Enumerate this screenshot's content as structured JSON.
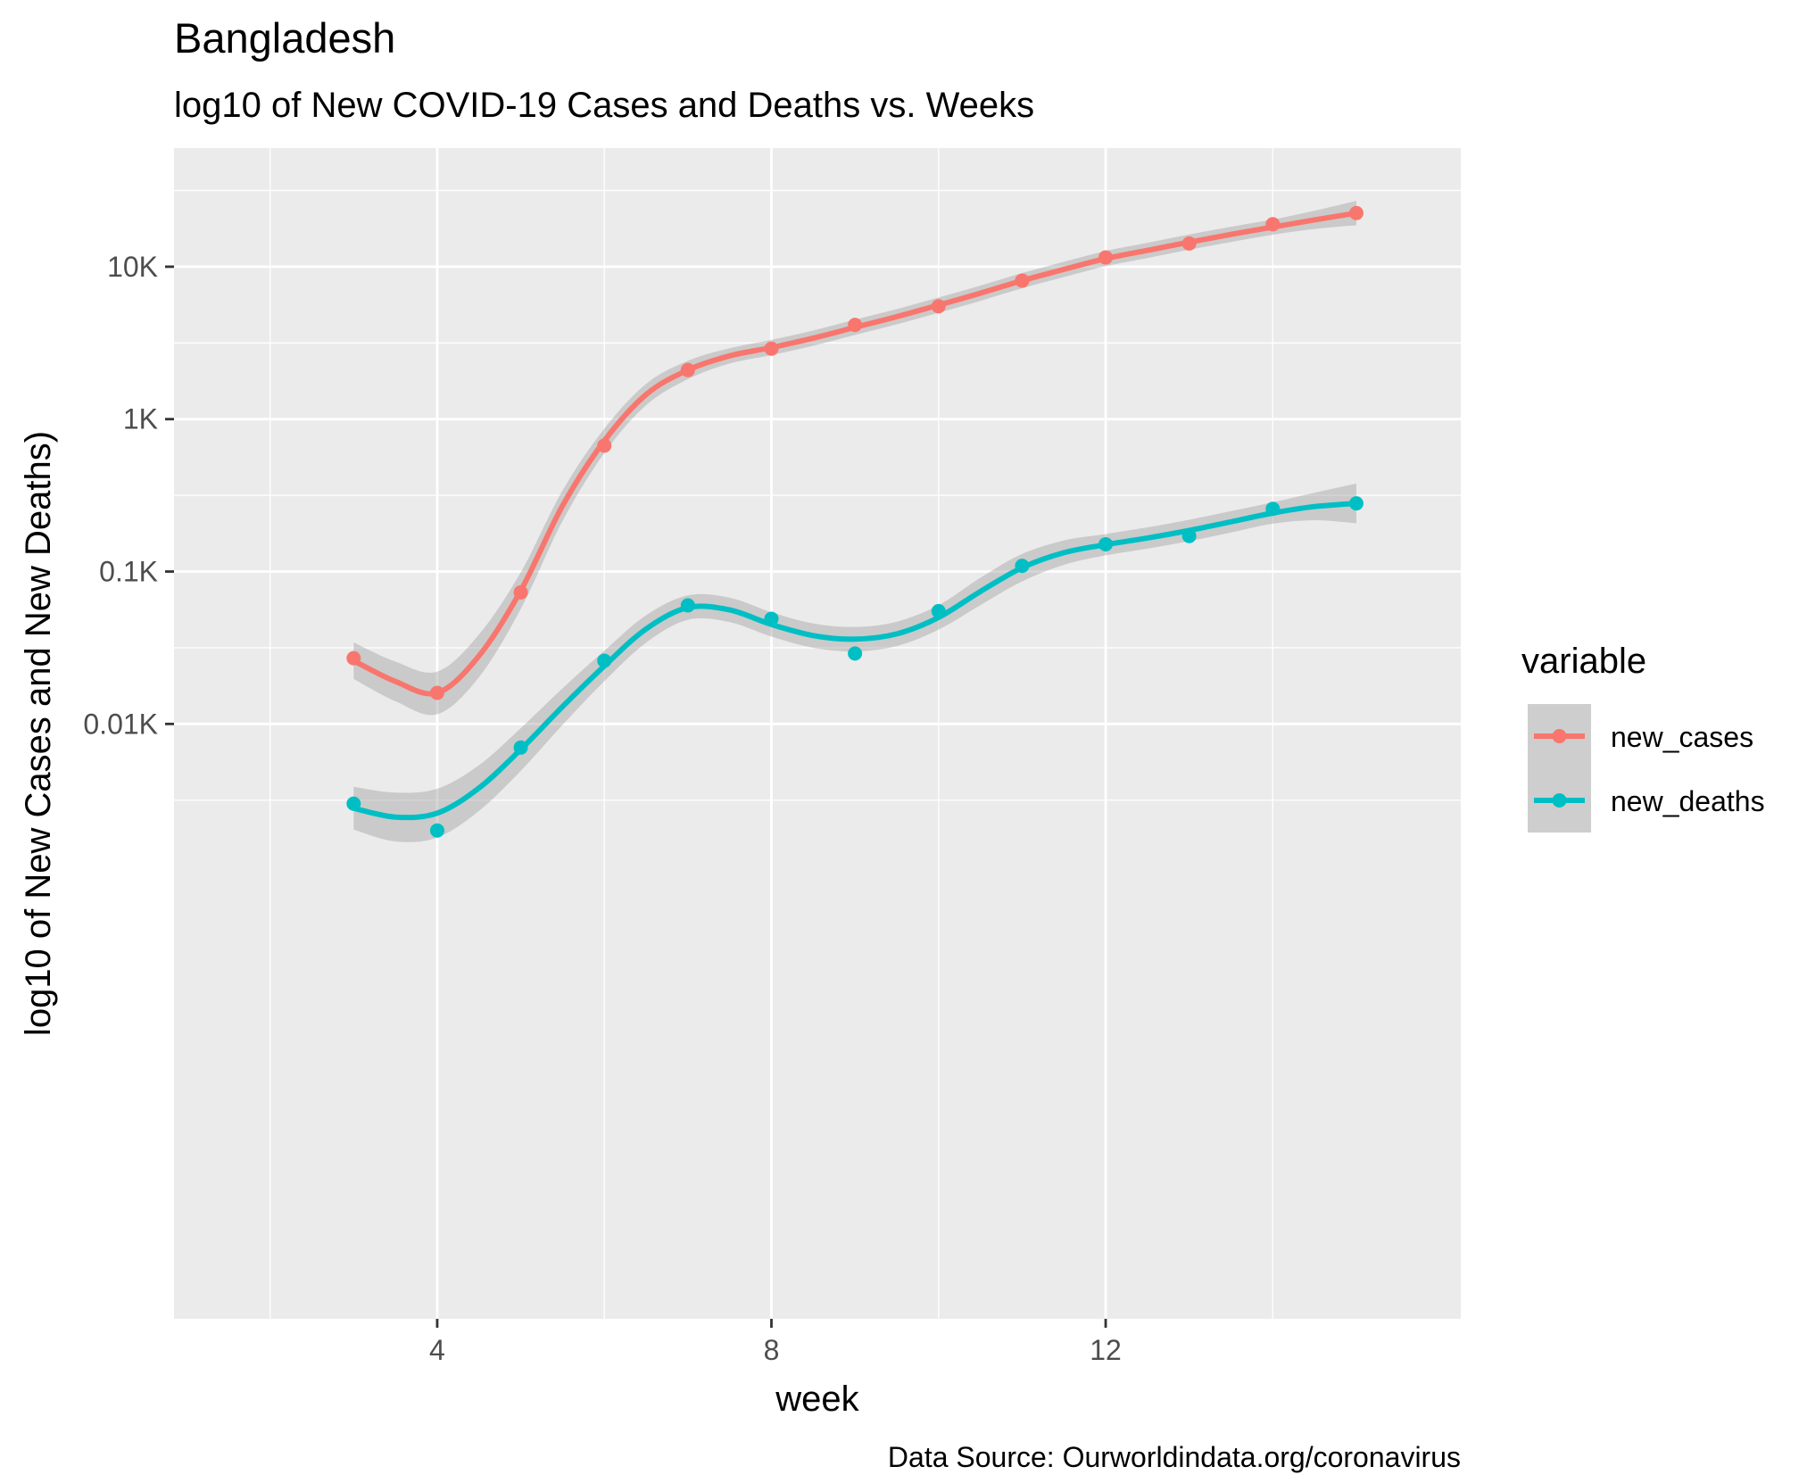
{
  "chart_data": {
    "type": "line",
    "title": "Bangladesh",
    "subtitle": "log10 of New COVID-19 Cases and Deaths vs. Weeks",
    "xlabel": "week",
    "ylabel": "log10 of New Cases and New Deaths)",
    "caption": "Data Source: Ourworldindata.org/coronavirus",
    "x_scale": "linear",
    "y_scale": "log10",
    "xlim": [
      0.85,
      16.25
    ],
    "ylim": [
      0.00125,
      60000
    ],
    "x_ticks": [
      4,
      8,
      12
    ],
    "x_tick_labels": [
      "4",
      "8",
      "12"
    ],
    "y_ticks": [
      10,
      100,
      1000,
      10000
    ],
    "y_tick_labels": [
      "0.01K",
      "0.1K",
      "1K",
      "10K"
    ],
    "grid": true,
    "legend": {
      "title": "variable",
      "position": "right"
    },
    "series": [
      {
        "name": "new_cases",
        "color": "#F8766D",
        "x": [
          3,
          4,
          5,
          6,
          7,
          8,
          9,
          10,
          11,
          12,
          13,
          14,
          15
        ],
        "y": [
          27,
          16,
          73,
          670,
          2100,
          2900,
          4150,
          5500,
          8100,
          11500,
          14200,
          19000,
          22500
        ],
        "smooth": {
          "x": [
            3,
            3.5,
            4,
            4.5,
            5,
            5.5,
            6,
            6.5,
            7,
            7.5,
            8,
            8.5,
            9,
            9.5,
            10,
            10.5,
            11,
            11.5,
            12,
            12.5,
            13,
            13.5,
            14,
            14.5,
            15
          ],
          "y": [
            26,
            19,
            16,
            28,
            75,
            270,
            720,
            1450,
            2100,
            2600,
            2950,
            3400,
            4000,
            4700,
            5600,
            6700,
            8100,
            9600,
            11300,
            12800,
            14500,
            16300,
            18200,
            20300,
            22500
          ],
          "band": [
            0.12,
            0.13,
            0.14,
            0.14,
            0.12,
            0.1,
            0.08,
            0.07,
            0.06,
            0.05,
            0.05,
            0.05,
            0.05,
            0.05,
            0.05,
            0.05,
            0.05,
            0.05,
            0.05,
            0.05,
            0.05,
            0.05,
            0.05,
            0.06,
            0.08
          ]
        }
      },
      {
        "name": "new_deaths",
        "color": "#00BFC4",
        "x": [
          3,
          4,
          5,
          6,
          7,
          8,
          9,
          10,
          11,
          12,
          13,
          14,
          15
        ],
        "y": [
          3,
          2,
          7,
          26,
          60,
          49,
          29,
          55,
          109,
          151,
          171,
          258,
          280
        ],
        "smooth": {
          "x": [
            3,
            3.5,
            4,
            4.5,
            5,
            5.5,
            6,
            6.5,
            7,
            7.5,
            8,
            8.5,
            9,
            9.5,
            10,
            10.5,
            11,
            11.5,
            12,
            12.5,
            13,
            13.5,
            14,
            14.5,
            15
          ],
          "y": [
            2.8,
            2.45,
            2.6,
            3.8,
            6.8,
            13,
            24,
            42,
            58,
            56,
            45,
            38,
            36,
            39,
            50,
            74,
            106,
            133,
            150,
            166,
            186,
            212,
            242,
            267,
            280
          ],
          "band": [
            0.14,
            0.16,
            0.16,
            0.15,
            0.14,
            0.12,
            0.1,
            0.09,
            0.08,
            0.08,
            0.08,
            0.08,
            0.08,
            0.08,
            0.08,
            0.09,
            0.09,
            0.08,
            0.07,
            0.07,
            0.07,
            0.07,
            0.07,
            0.09,
            0.13
          ]
        }
      }
    ]
  }
}
